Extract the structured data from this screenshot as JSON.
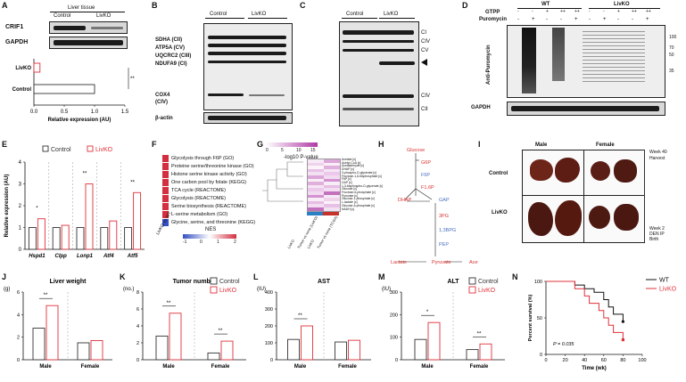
{
  "panel_letters": [
    "A",
    "B",
    "C",
    "D",
    "E",
    "F",
    "G",
    "H",
    "I",
    "J",
    "K",
    "L",
    "M",
    "N"
  ],
  "A": {
    "header": "Liver tissue",
    "groups": [
      "Control",
      "LivKO"
    ],
    "blots": [
      "CRIF1",
      "GAPDH"
    ],
    "chart_data": {
      "type": "bar",
      "categories": [
        "LivKO",
        "Control"
      ],
      "values": [
        0.1,
        1.0
      ],
      "xlabel": "Relative expression (AU)",
      "xticks": [
        "0.0",
        "0.5",
        "1.0",
        "1.5"
      ],
      "xlim": [
        0,
        1.5
      ],
      "significance": "**"
    }
  },
  "B": {
    "groups": [
      "Control",
      "LivKO"
    ],
    "labels": [
      "SDHA (CII)",
      "ATP5A (CV)",
      "UQCRC2 (CIII)",
      "NDUFA9 (CI)",
      "COX4",
      "(CIV)",
      "β-actin"
    ]
  },
  "C": {
    "groups": [
      "Control",
      "LivKO"
    ],
    "labels": [
      "CI",
      "CIV",
      "CV",
      "CIV",
      "CII"
    ]
  },
  "D": {
    "groups": [
      "WT",
      "LivKO"
    ],
    "rows": [
      "GTPP",
      "Puromycin"
    ],
    "gtpp": [
      "-",
      "-",
      "+",
      "++",
      "++",
      "-",
      "-",
      "+",
      "++",
      "++"
    ],
    "puromycin": [
      "-",
      "+",
      "-",
      "-",
      "+",
      "-",
      "+",
      "-",
      "-",
      "+"
    ],
    "ylabel": "Anti-Puromycin",
    "markers": [
      "100",
      "70",
      "50",
      "35"
    ],
    "loading": "GAPDH"
  },
  "E": {
    "chart_data": {
      "type": "bar",
      "categories": [
        "Hspd1",
        "Clpp",
        "Lonp1",
        "Atf4",
        "Atf5"
      ],
      "series": [
        {
          "name": "Control",
          "values": [
            1.0,
            1.0,
            1.0,
            1.0,
            1.0
          ]
        },
        {
          "name": "LivKO",
          "values": [
            1.4,
            1.1,
            3.0,
            1.3,
            2.6
          ]
        }
      ],
      "ylabel": "Relative expression (AU)",
      "yticks": [
        "0",
        "1",
        "2",
        "3",
        "4"
      ],
      "ylim": [
        0,
        4
      ],
      "significance": [
        "*",
        "",
        "**",
        "",
        "**"
      ],
      "legend": "top"
    }
  },
  "F": {
    "terms": [
      "Glycolysis through F6P (GO)",
      "Proteine serine/threonine kinase (GO)",
      "Histone serine kinase activity (GO)",
      "One carbon pool by folate (KEGG)",
      "TCA cycle (REACTOME)",
      "Glycolysis (REACTOME)",
      "Serine biosynthesis (REACTOME)",
      "L-serine metabolism (GO)",
      "Glycine, serine, and threonine (KEGG)"
    ],
    "colors": [
      "#d32f3f",
      "#d32f3f",
      "#d32f3f",
      "#d32f3f",
      "#d32f3f",
      "#d32f3f",
      "#d32f3f",
      "#d32f3f",
      "#3550c0"
    ],
    "column": "LivKO vs WT",
    "scale_title": "NES",
    "scale_ticks": [
      "-1",
      "0",
      "1",
      "2"
    ]
  },
  "G": {
    "scale_title": "-log10 P-value",
    "scale_ticks": [
      "0",
      "5",
      "10",
      "15"
    ],
    "metabolites": [
      "Acetate [c]",
      "Acetyl-CoA [c]",
      "Acetaldehyde [c]",
      "DHAP [c]",
      "3-phospho-D-glycerate [c]",
      "Fructose-1,6-bisphosphate [c]",
      "F6P [c]",
      "GAP [c]",
      "1,3-bisphospho-D-glycerate [c]",
      "Glucose [c]",
      "Fructose-6-phosphate [c]",
      "Pyruvate [c]",
      "Glucose-1-phosphate [c]",
      "L-lactate [c]",
      "Glucose-6-phosphate [c]",
      "NADH [c]"
    ],
    "columns": [
      "LivKO",
      "Tumor vs none (LivKO)",
      "LivKO",
      "Tumor vs none (TCGA)"
    ]
  },
  "H": {
    "nodes": [
      "Glucose",
      "G6P",
      "F6P",
      "F1,6P",
      "DHAP",
      "GAP",
      "3PG",
      "1,3BPG",
      "PEP",
      "Lactate",
      "Pyruvate",
      "Acetate"
    ]
  },
  "I": {
    "columns": [
      "Male",
      "Female"
    ],
    "rows": [
      "Control",
      "LivKO"
    ],
    "timeline": [
      "Week 40",
      "Harvest",
      "Week 2",
      "DEN IP",
      "Birth"
    ]
  },
  "J": {
    "title": "Liver weight",
    "chart_data": {
      "type": "bar",
      "categories": [
        "Male",
        "Female"
      ],
      "series": [
        {
          "name": "Control",
          "values": [
            2.8,
            1.5
          ]
        },
        {
          "name": "LivKO",
          "values": [
            4.8,
            1.7
          ]
        }
      ],
      "ylabel": "(g)",
      "yticks": [
        "0",
        "2",
        "4",
        "6"
      ],
      "ylim": [
        0,
        6
      ],
      "significance": [
        "**",
        ""
      ]
    }
  },
  "K": {
    "title": "Tumor number",
    "chart_data": {
      "type": "bar",
      "categories": [
        "Male",
        "Female"
      ],
      "series": [
        {
          "name": "Control",
          "values": [
            2.8,
            0.8
          ]
        },
        {
          "name": "LivKO",
          "values": [
            5.5,
            2.2
          ]
        }
      ],
      "ylabel": "(no.)",
      "yticks": [
        "0",
        "2",
        "4",
        "6",
        "8"
      ],
      "ylim": [
        0,
        8
      ],
      "significance": [
        "**",
        "**"
      ],
      "legend": "top-right"
    }
  },
  "L": {
    "title": "AST",
    "chart_data": {
      "type": "bar",
      "categories": [
        "Male",
        "Female"
      ],
      "series": [
        {
          "name": "Control",
          "values": [
            120,
            105
          ]
        },
        {
          "name": "LivKO",
          "values": [
            200,
            115
          ]
        }
      ],
      "ylabel": "(IU)",
      "yticks": [
        "0",
        "100",
        "200",
        "300",
        "400"
      ],
      "ylim": [
        0,
        400
      ],
      "significance": [
        "**",
        ""
      ]
    }
  },
  "M": {
    "title": "ALT",
    "chart_data": {
      "type": "bar",
      "categories": [
        "Male",
        "Female"
      ],
      "series": [
        {
          "name": "Control",
          "values": [
            90,
            45
          ]
        },
        {
          "name": "LivKO",
          "values": [
            165,
            70
          ]
        }
      ],
      "ylabel": "(IU)",
      "yticks": [
        "0",
        "100",
        "200",
        "300"
      ],
      "ylim": [
        0,
        300
      ],
      "significance": [
        "*",
        "**"
      ],
      "legend": "top-right"
    }
  },
  "N": {
    "chart_data": {
      "type": "line",
      "series": [
        {
          "name": "WT",
          "x": [
            0,
            15,
            30,
            40,
            50,
            60,
            65,
            70,
            80
          ],
          "y": [
            100,
            100,
            95,
            90,
            85,
            75,
            65,
            55,
            45
          ]
        },
        {
          "name": "LivKO",
          "x": [
            0,
            20,
            30,
            40,
            45,
            55,
            60,
            65,
            70,
            80
          ],
          "y": [
            100,
            100,
            90,
            80,
            70,
            60,
            50,
            40,
            30,
            20
          ]
        }
      ],
      "xlabel": "Time (wk)",
      "ylabel": "Percent survival (%)",
      "xticks": [
        "0",
        "20",
        "40",
        "60",
        "80",
        "100"
      ],
      "yticks": [
        "0",
        "50",
        "100"
      ],
      "xlim": [
        0,
        100
      ],
      "ylim": [
        0,
        100
      ],
      "annotation": "P = 0.035",
      "legend": "top-right"
    }
  },
  "colors": {
    "control": "#333333",
    "livko": "#e0313a"
  }
}
